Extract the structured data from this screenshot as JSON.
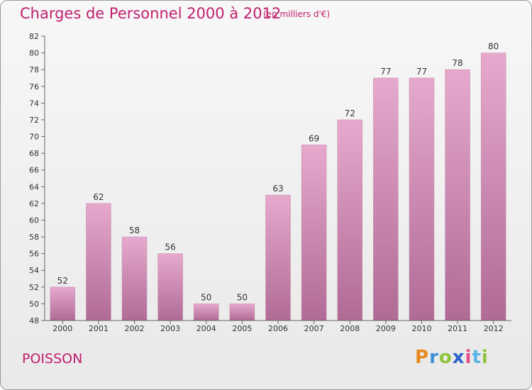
{
  "title": "Charges de Personnel 2000 à 2012",
  "subtitle": "(en milliers d'€)",
  "commune": "POISSON",
  "brand": {
    "letters": [
      "P",
      "r",
      "o",
      "x",
      "i",
      "t",
      "i"
    ],
    "colors": [
      "#e8891e",
      "#3b8fd6",
      "#8cc43c",
      "#2a63c9",
      "#e64a8c",
      "#5ab4e5",
      "#8cc43c"
    ]
  },
  "colors": {
    "title": "#c0206e",
    "bar_top": "#e6a9cd",
    "bar_bottom": "#b06b95",
    "grid": "#dddddd",
    "axis": "#666666"
  },
  "chart_data": {
    "type": "bar",
    "categories": [
      "2000",
      "2001",
      "2002",
      "2003",
      "2004",
      "2005",
      "2006",
      "2007",
      "2008",
      "2009",
      "2010",
      "2011",
      "2012"
    ],
    "values": [
      52,
      62,
      58,
      56,
      50,
      50,
      63,
      69,
      72,
      77,
      77,
      78,
      80
    ],
    "ylim": [
      48,
      82
    ],
    "yticks": [
      48,
      50,
      52,
      54,
      56,
      58,
      60,
      62,
      64,
      66,
      68,
      70,
      72,
      74,
      76,
      78,
      80,
      82
    ],
    "grid": false
  }
}
